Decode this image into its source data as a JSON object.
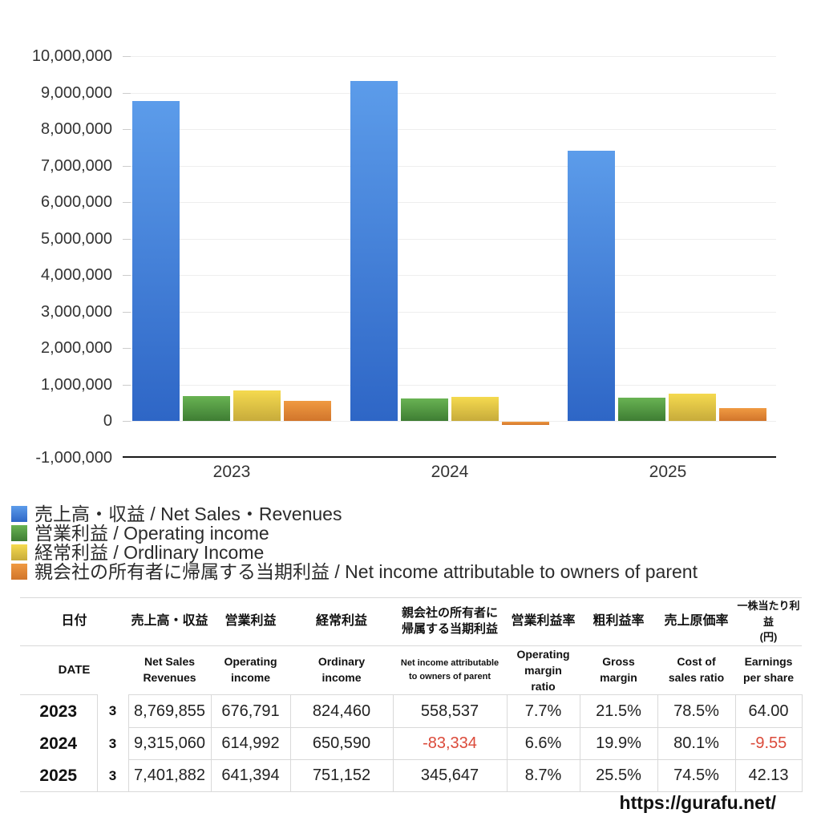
{
  "chart_data": {
    "type": "bar",
    "categories": [
      "2023",
      "2024",
      "2025"
    ],
    "series": [
      {
        "name": "売上高・収益 / Net Sales・Revenues",
        "values": [
          8769855,
          9315060,
          7401882
        ],
        "color_top": "#5C9CEA",
        "color_bottom": "#2E66C6"
      },
      {
        "name": "営業利益 / Operating income",
        "values": [
          676791,
          614992,
          641394
        ],
        "color_top": "#69B353",
        "color_bottom": "#3E7D33"
      },
      {
        "name": "経常利益 / Ordlinary Income",
        "values": [
          824460,
          650590,
          751152
        ],
        "color_top": "#F5DA4F",
        "color_bottom": "#C7AB3B"
      },
      {
        "name": "親会社の所有者に帰属する当期利益 / Net income attributable to owners of parent",
        "values": [
          558537,
          -83334,
          345647
        ],
        "color_top": "#F09A42",
        "color_bottom": "#D1752B"
      }
    ],
    "ylim": [
      -1000000,
      10000000
    ],
    "ytick_step": 1000000,
    "ytick_labels": [
      "10,000,000",
      "9,000,000",
      "8,000,000",
      "7,000,000",
      "6,000,000",
      "5,000,000",
      "4,000,000",
      "3,000,000",
      "2,000,000",
      "1,000,000",
      "0",
      "-1,000,000"
    ],
    "title": "",
    "xlabel": "",
    "ylabel": "",
    "grid": true,
    "legend_position": "bottom-left"
  },
  "table": {
    "header_jp": [
      [
        "日付"
      ],
      [
        "売上高・収益"
      ],
      [
        "営業利益"
      ],
      [
        "経常利益"
      ],
      [
        "親会社の所有者に",
        "帰属する当期利益"
      ],
      [
        "営業利益率"
      ],
      [
        "粗利益率"
      ],
      [
        "売上原価率"
      ],
      [
        "一株当たり利益",
        "(円)"
      ]
    ],
    "header_en": [
      [
        "DATE"
      ],
      [
        "Net Sales",
        "Revenues"
      ],
      [
        "Operating",
        "income"
      ],
      [
        "Ordinary",
        "income"
      ],
      [
        "Net income attributable",
        "to owners of parent"
      ],
      [
        "Operating",
        "margin",
        "ratio"
      ],
      [
        "Gross",
        "margin"
      ],
      [
        "Cost of",
        "sales ratio"
      ],
      [
        "Earnings",
        "per share"
      ]
    ],
    "rows": [
      {
        "year": "2023",
        "month": "3",
        "values": [
          "8,769,855",
          "676,791",
          "824,460",
          "558,537",
          "7.7%",
          "21.5%",
          "78.5%",
          "64.00"
        ],
        "negatives": []
      },
      {
        "year": "2024",
        "month": "3",
        "values": [
          "9,315,060",
          "614,992",
          "650,590",
          "-83,334",
          "6.6%",
          "19.9%",
          "80.1%",
          "-9.55"
        ],
        "negatives": [
          3,
          7
        ]
      },
      {
        "year": "2025",
        "month": "3",
        "values": [
          "7,401,882",
          "641,394",
          "751,152",
          "345,647",
          "8.7%",
          "25.5%",
          "74.5%",
          "42.13"
        ],
        "negatives": []
      }
    ]
  },
  "footer": {
    "url": "https://gurafu.net/"
  }
}
